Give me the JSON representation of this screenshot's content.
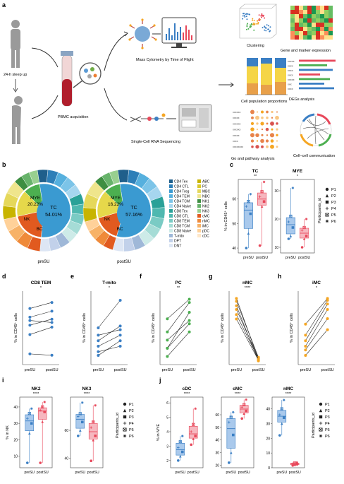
{
  "panel_letters": [
    "a",
    "b",
    "c",
    "d",
    "e",
    "f",
    "g",
    "h",
    "i",
    "j"
  ],
  "panel_a": {
    "sleep_label": "24-h sleep up",
    "pbmc_label": "PBMC acquisition",
    "cytof_label": "Mass Cytometry by Time of Flight",
    "scrna_label": "Single-Cell RNA Sequencing",
    "clustering_label": "Clustering",
    "gene_label": "Gene and marker expression",
    "proportion_label": "Cell population proportions",
    "degs_label": "DEGs analysis",
    "go_label": "Go and pathway analysis",
    "comm_label": "Cell–cell communication",
    "xxx_labels": [
      "xxxxxx",
      "xxxxx",
      "xxxxxx",
      "xxxxxx",
      "xxxxx",
      "xxxx",
      "xxxxxxxx"
    ],
    "degs_axis": [
      "xxxxx",
      "xxxx",
      "xxxx",
      "xxxx",
      "xxxxx",
      "xxx",
      "xxxx"
    ],
    "colors": {
      "blue": "#3b7fc4",
      "red": "#e8475a",
      "green": "#4caf50",
      "orange": "#f5a623"
    }
  },
  "panel_b": {
    "donuts": [
      {
        "label": "preSU",
        "center_label": "TC",
        "center_value": "54.01%",
        "mye_label": "MYE",
        "mye_value": "20.22%",
        "nk_label": "NK",
        "bc_label": "BC"
      },
      {
        "label": "postSU",
        "center_label": "TC",
        "center_value": "57.16%",
        "mye_label": "MYE",
        "mye_value": "16.22%",
        "nk_label": "NK",
        "bc_label": "BC"
      }
    ],
    "legend_left": [
      "CD4 Tex",
      "CD4 CTL",
      "CD4 Treg",
      "CD4 TEM",
      "CD4 TCM",
      "CD4 Naive",
      "CD8 Tex",
      "CD8 CTL",
      "CD8 TEM",
      "CD8 TCM",
      "CD8 Naive",
      "T-mito",
      "DPT",
      "DNT"
    ],
    "legend_right": [
      "ABC",
      "PC",
      "MBC",
      "NBC",
      "NK1",
      "NK2",
      "NK3",
      "cMC",
      "nMC",
      "iMC",
      "pDC",
      "cDC"
    ],
    "legend_colors_left": [
      "#1f5f8b",
      "#2d7fb8",
      "#3a9ad1",
      "#56b0de",
      "#7cc4e8",
      "#a6d6ef",
      "#2aa198",
      "#4fb8b0",
      "#7acbc4",
      "#a5dcd6",
      "#cdebe8",
      "#9fb8d8",
      "#c2d1ea",
      "#dde6f4"
    ],
    "legend_colors_right": [
      "#c8b400",
      "#d9c92b",
      "#e5d85a",
      "#efe58c",
      "#3e8e41",
      "#67b36a",
      "#98cf8f",
      "#e15a1f",
      "#ef8a3a",
      "#f7b267",
      "#ffd199",
      "#ffe7c8"
    ]
  },
  "panel_c": {
    "plots": [
      {
        "title": "TC",
        "sig": "**",
        "ylabel": "% in CD45⁺ cells",
        "yticks": [
          "40",
          "50",
          "60"
        ],
        "groups": [
          "preSU",
          "postSU"
        ]
      },
      {
        "title": "MYE",
        "sig": "*",
        "ylabel": "",
        "yticks": [
          "10",
          "20",
          "30"
        ],
        "groups": [
          "preSU",
          "postSU"
        ]
      }
    ],
    "legend_title": "Participants_id",
    "participants": [
      "P1",
      "P2",
      "P3",
      "P4",
      "P5",
      "P6"
    ]
  },
  "chart_data": [
    {
      "type": "line",
      "title": "CD8 TEM",
      "sig": "*",
      "ylabel": "% in CD45⁺ cells",
      "categories": [
        "preSU",
        "postSU"
      ],
      "series": [
        {
          "values": [
            4.6,
            4.4
          ]
        },
        {
          "values": [
            7.5,
            8.6
          ]
        },
        {
          "values": [
            8.9,
            9.8
          ]
        },
        {
          "values": [
            9.6,
            9.3
          ]
        },
        {
          "values": [
            10.1,
            11.0
          ]
        },
        {
          "values": [
            11.4,
            12.3
          ]
        }
      ]
    },
    {
      "type": "line",
      "title": "T-mito",
      "sig": "*",
      "ylabel": "% in CD45⁺ cells",
      "categories": [
        "preSU",
        "postSU"
      ],
      "series": [
        {
          "values": [
            1.5,
            2.3
          ]
        },
        {
          "values": [
            1.7,
            2.0
          ]
        },
        {
          "values": [
            2.0,
            2.6
          ]
        },
        {
          "values": [
            2.3,
            3.1
          ]
        },
        {
          "values": [
            2.6,
            2.9
          ]
        },
        {
          "values": [
            3.0,
            4.5
          ]
        }
      ]
    },
    {
      "type": "line",
      "title": "PC",
      "sig": "**",
      "ylabel": "% in CD45⁺ cells",
      "categories": [
        "preSU",
        "postSU"
      ],
      "series": [
        {
          "values": [
            0.25,
            0.4
          ]
        },
        {
          "values": [
            0.3,
            0.45
          ]
        },
        {
          "values": [
            0.3,
            0.52
          ]
        },
        {
          "values": [
            0.35,
            0.47
          ]
        },
        {
          "values": [
            0.4,
            0.58
          ]
        },
        {
          "values": [
            0.48,
            0.6
          ]
        }
      ]
    },
    {
      "type": "line",
      "title": "nMC",
      "sig": "****",
      "ylabel": "% in CD45⁺ cells",
      "categories": [
        "preSU",
        "postSU"
      ],
      "series": [
        {
          "values": [
            6.2,
            0.6
          ]
        },
        {
          "values": [
            6.8,
            0.8
          ]
        },
        {
          "values": [
            7.5,
            0.9
          ]
        },
        {
          "values": [
            8.0,
            0.5
          ]
        },
        {
          "values": [
            8.6,
            1.0
          ]
        },
        {
          "values": [
            9.0,
            0.7
          ]
        }
      ]
    },
    {
      "type": "line",
      "title": "iMC",
      "sig": "*",
      "ylabel": "% in CD45⁺ cells",
      "categories": [
        "preSU",
        "postSU"
      ],
      "series": [
        {
          "values": [
            1.5,
            2.9
          ]
        },
        {
          "values": [
            1.8,
            3.5
          ]
        },
        {
          "values": [
            2.0,
            4.0
          ]
        },
        {
          "values": [
            2.3,
            4.3
          ]
        },
        {
          "values": [
            2.6,
            4.5
          ]
        },
        {
          "values": [
            3.2,
            4.6
          ]
        }
      ]
    }
  ],
  "line_axis_ticks": [
    "preSU",
    "postSU"
  ],
  "panel_i": {
    "plots": [
      {
        "title": "NK2",
        "sig": "****",
        "ylabel": "% in NK",
        "yticks": [
          "10",
          "20",
          "30",
          "40"
        ],
        "groups": [
          "preSU",
          "postSU"
        ]
      },
      {
        "title": "NK3",
        "sig": "****",
        "ylabel": "",
        "yticks": [
          "40",
          "60"
        ],
        "groups": [
          "preSU",
          "postSU"
        ]
      }
    ],
    "legend_title": "Participants_id",
    "participants": [
      "P1",
      "P2",
      "P3",
      "P4",
      "P5",
      "P6"
    ]
  },
  "panel_j": {
    "plots": [
      {
        "title": "cDC",
        "sig": "****",
        "ylabel": "% in MYE",
        "yticks": [
          "2",
          "3",
          "4",
          "5",
          "6"
        ],
        "groups": [
          "preSU",
          "postSU"
        ]
      },
      {
        "title": "cMC",
        "sig": "****",
        "ylabel": "",
        "yticks": [
          "20",
          "30",
          "40",
          "50",
          "60"
        ],
        "groups": [
          "preSU",
          "postSU"
        ]
      },
      {
        "title": "nMC",
        "sig": "****",
        "ylabel": "",
        "yticks": [
          "0",
          "10",
          "20",
          "30",
          "40"
        ],
        "groups": [
          "preSU",
          "postSU"
        ]
      }
    ],
    "legend_title": "Participants_id",
    "participants": [
      "P1",
      "P2",
      "P3",
      "P4",
      "P5",
      "P6"
    ]
  }
}
